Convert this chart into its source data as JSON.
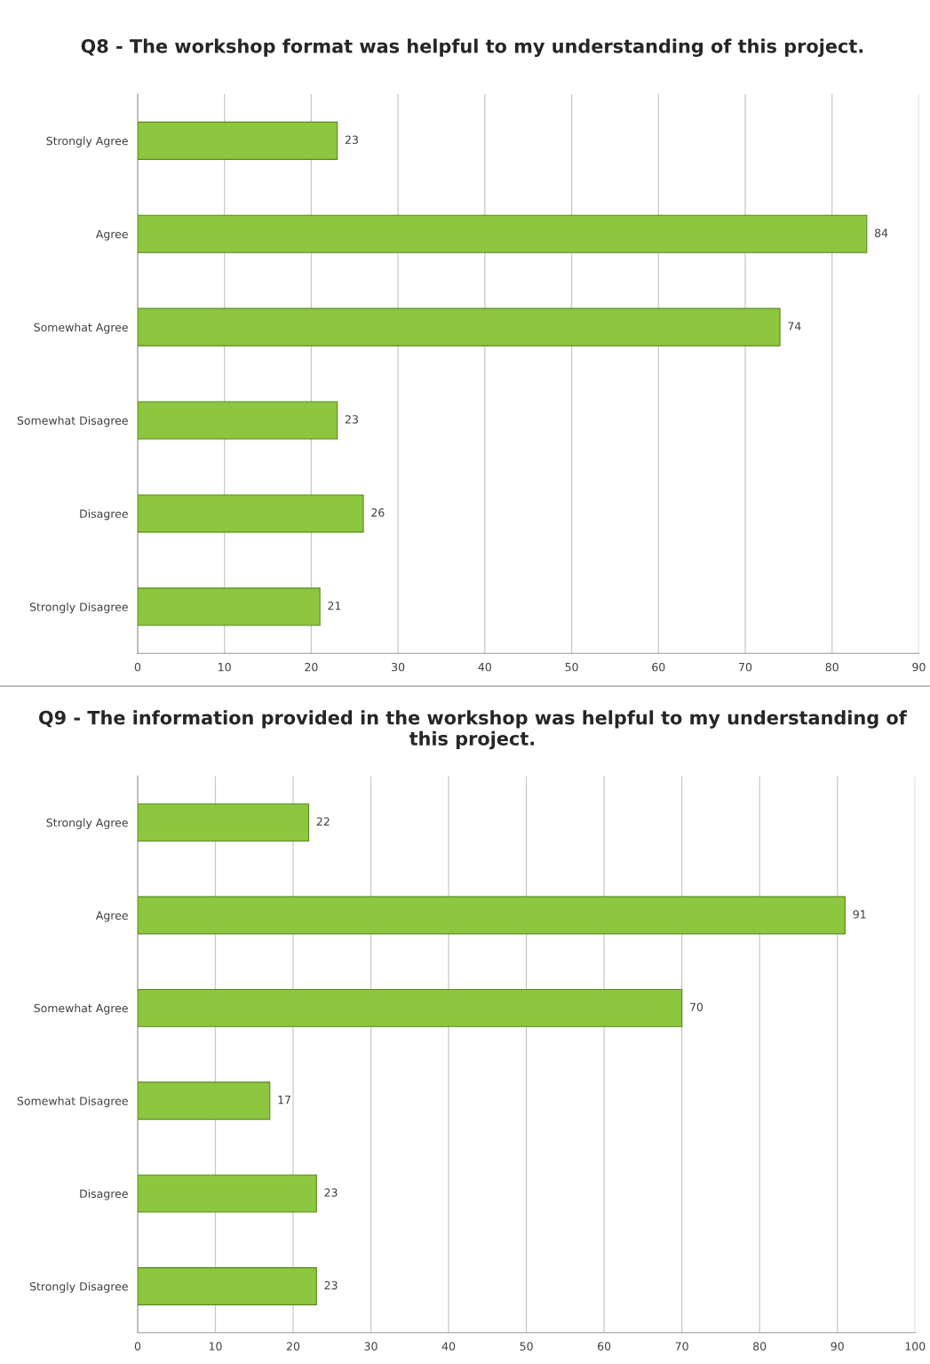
{
  "chart_data": [
    {
      "type": "bar",
      "orientation": "horizontal",
      "title": "Q8 - The workshop format was helpful to my understanding of this project.",
      "categories": [
        "Strongly Agree",
        "Agree",
        "Somewhat Agree",
        "Somewhat Disagree",
        "Disagree",
        "Strongly Disagree"
      ],
      "values": [
        23,
        84,
        74,
        23,
        26,
        21
      ],
      "color": "#8dc63f",
      "xlim": [
        0,
        90
      ],
      "xticks": [
        0,
        10,
        20,
        30,
        40,
        50,
        60,
        70,
        80,
        90
      ],
      "grid": "x",
      "data_labels": true
    },
    {
      "type": "bar",
      "orientation": "horizontal",
      "title": "Q9 - The information provided in the workshop was helpful to my understanding of this project.",
      "categories": [
        "Strongly Agree",
        "Agree",
        "Somewhat Agree",
        "Somewhat Disagree",
        "Disagree",
        "Strongly Disagree"
      ],
      "values": [
        22,
        91,
        70,
        17,
        23,
        23
      ],
      "color": "#8dc63f",
      "xlim": [
        0,
        100
      ],
      "xticks": [
        0,
        10,
        20,
        30,
        40,
        50,
        60,
        70,
        80,
        90,
        100
      ],
      "grid": "x",
      "data_labels": true
    }
  ]
}
